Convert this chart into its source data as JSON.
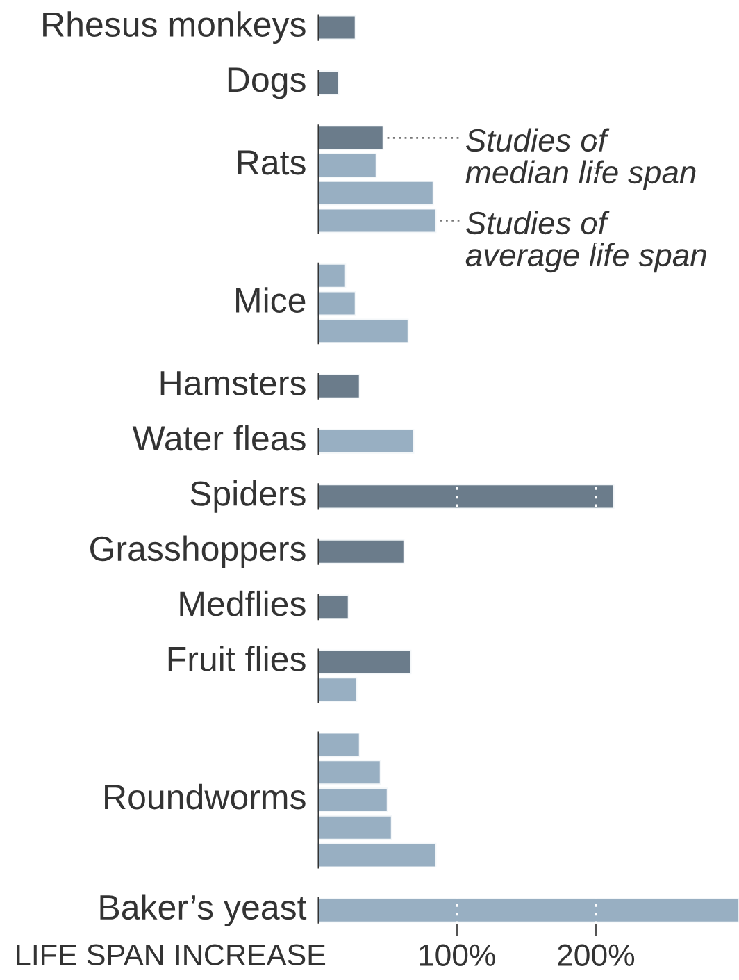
{
  "chart_data": {
    "type": "bar",
    "orientation": "horizontal",
    "xlabel": "LIFE SPAN INCREASE",
    "categories": [
      "Rhesus monkeys",
      null,
      "Dogs",
      null,
      null,
      "Rats",
      null,
      null,
      null,
      null,
      "Mice",
      null,
      null,
      "Hamsters",
      null,
      "Water fleas",
      null,
      "Spiders",
      null,
      "Grasshoppers",
      null,
      "Medflies",
      null,
      "Fruit flies",
      null,
      null,
      null,
      null,
      "Roundworms",
      null,
      null,
      null,
      "Baker’s yeast"
    ],
    "series": [
      {
        "name": "Studies of median life span",
        "color": "#6b7c8b",
        "values": [
          27,
          null,
          15,
          null,
          47,
          null,
          null,
          null,
          null,
          null,
          null,
          null,
          null,
          30,
          null,
          null,
          null,
          213,
          null,
          62,
          null,
          22,
          null,
          67,
          null,
          null,
          null,
          null,
          null,
          null,
          null,
          null,
          null
        ]
      },
      {
        "name": "Studies of average life span",
        "color": "#98afc2",
        "values": [
          null,
          null,
          null,
          null,
          null,
          42,
          83,
          85,
          null,
          20,
          27,
          65,
          null,
          null,
          null,
          69,
          null,
          null,
          null,
          null,
          null,
          null,
          null,
          null,
          28,
          null,
          30,
          45,
          50,
          53,
          85,
          null,
          303
        ]
      }
    ],
    "xlim": [
      0,
      303
    ],
    "xticks": [
      {
        "value": 100,
        "label": "100%"
      },
      {
        "value": 200,
        "label": "200%"
      }
    ],
    "grid": "x",
    "legend": false
  }
}
